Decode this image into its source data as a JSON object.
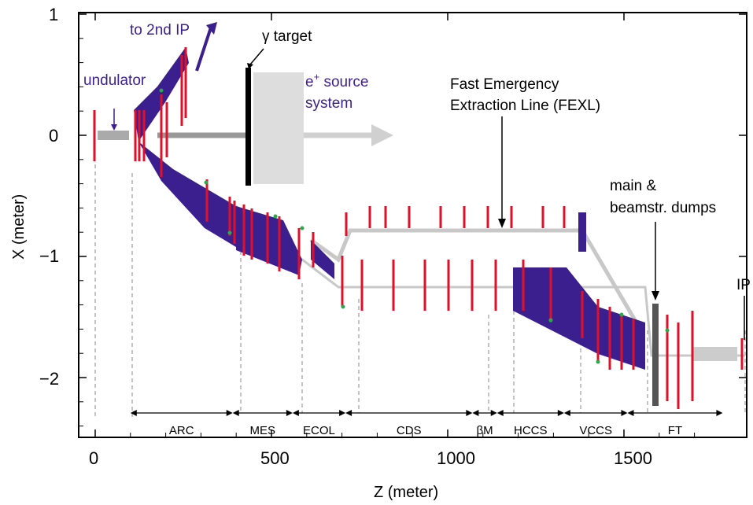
{
  "chart_data": {
    "type": "diagram",
    "xlabel": "Z (meter)",
    "ylabel": "X (meter)",
    "x_ticks": [
      "0",
      "500",
      "1000",
      "1500"
    ],
    "y_ticks": [
      "1",
      "0",
      "−1",
      "−2"
    ],
    "xlim": [
      -60,
      1780
    ],
    "ylim": [
      -2.5,
      1.0
    ],
    "sections": [
      {
        "label": "ARC",
        "from": 100,
        "to": 390
      },
      {
        "label": "MES",
        "from": 390,
        "to": 560
      },
      {
        "label": "ECOL",
        "from": 560,
        "to": 710
      },
      {
        "label": "CDS",
        "from": 710,
        "to": 1070
      },
      {
        "label": "βM",
        "from": 1070,
        "to": 1140
      },
      {
        "label": "HCCS",
        "from": 1140,
        "to": 1330
      },
      {
        "label": "VCCS",
        "from": 1330,
        "to": 1510
      },
      {
        "label": "FT",
        "from": 1510,
        "to": 1780
      }
    ]
  },
  "annotations": {
    "to_2nd_ip": "to 2nd IP",
    "gamma_target": "γ target",
    "undulator": "undulator",
    "esource_line1": "e",
    "esource_sup": "+",
    "esource_line1_rest": " source",
    "esource_line2": "system",
    "fexl_line1": "Fast Emergency",
    "fexl_line2": "Extraction Line (FEXL)",
    "dumps_line1": "main &",
    "dumps_line2": "beamstr. dumps",
    "ip": "IP"
  },
  "colors": {
    "purple": "#3b1f8f",
    "red": "#e0102a",
    "green": "#2aa84a",
    "gray_line": "#c8c8c8",
    "dark_gray": "#555555"
  }
}
